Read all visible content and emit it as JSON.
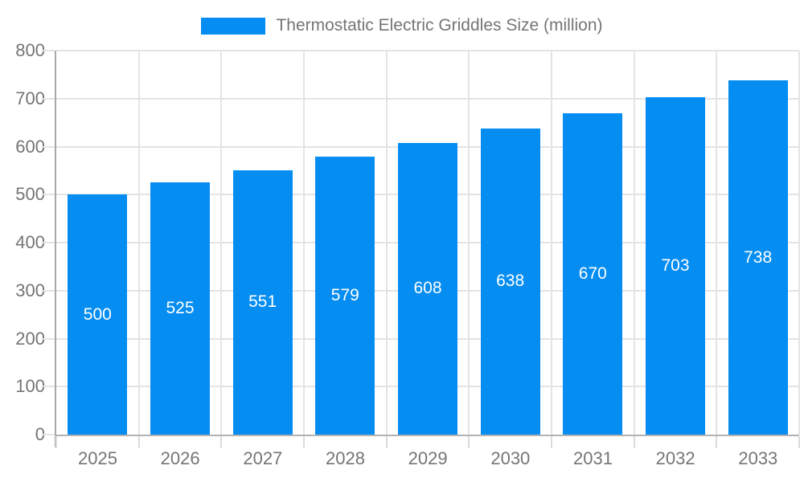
{
  "chart_data": {
    "type": "bar",
    "legend": "Thermostatic Electric Griddles Size (million)",
    "series_name": "Thermostatic Electric Griddles Size (million)",
    "categories": [
      "2025",
      "2026",
      "2027",
      "2028",
      "2029",
      "2030",
      "2031",
      "2032",
      "2033"
    ],
    "values": [
      500,
      525,
      551,
      579,
      608,
      638,
      670,
      703,
      738
    ],
    "xlabel": "",
    "ylabel": "",
    "ylim": [
      0,
      800
    ],
    "yticks": [
      0,
      100,
      200,
      300,
      400,
      500,
      600,
      700,
      800
    ],
    "grid": true,
    "legend_position": "top-center",
    "value_labels": "inside-center"
  },
  "colors": {
    "bar": "#058df2",
    "axis": "#a8a8a8",
    "gridline": "#e4e4e4",
    "tick_label": "#757575",
    "legend_text": "#757575",
    "value_label": "#ffffff",
    "background": "#ffffff"
  }
}
